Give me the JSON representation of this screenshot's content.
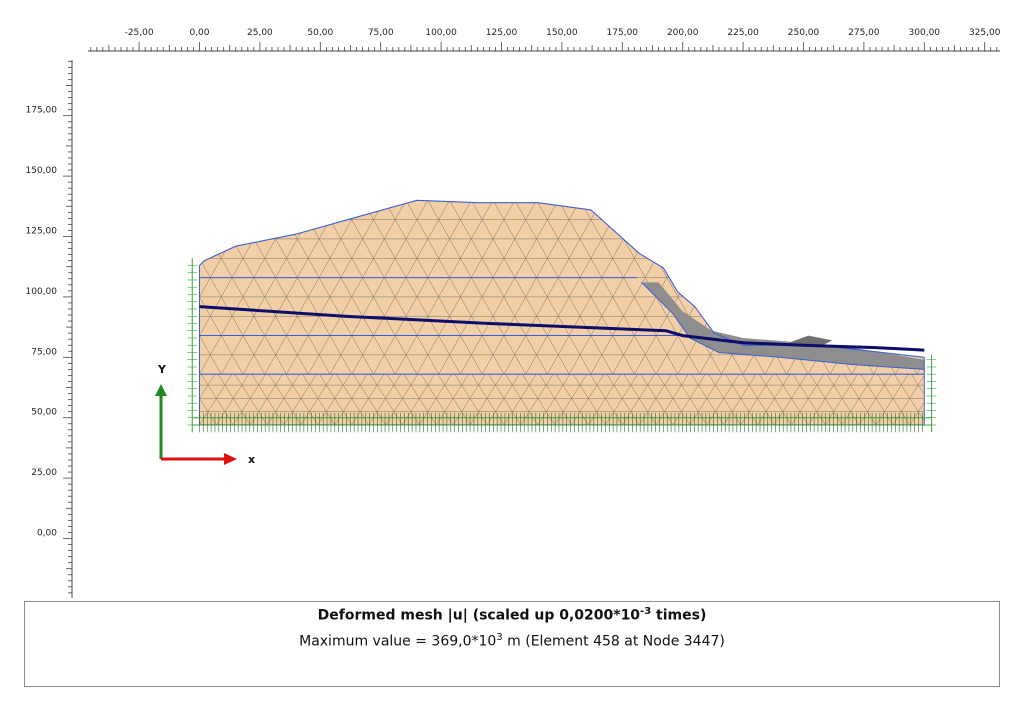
{
  "x_axis": {
    "tick_labels": [
      "-25,00",
      "0,00",
      "25,00",
      "50,00",
      "75,00",
      "100,00",
      "125,00",
      "150,00",
      "175,00",
      "200,00",
      "225,00",
      "250,00",
      "275,00",
      "300,00",
      "325,00"
    ],
    "tick_values": [
      -25,
      0,
      25,
      50,
      75,
      100,
      125,
      150,
      175,
      200,
      225,
      250,
      275,
      300,
      325
    ]
  },
  "y_axis": {
    "tick_labels": [
      "0,00",
      "25,00",
      "50,00",
      "75,00",
      "100,00",
      "125,00",
      "150,00",
      "175,00"
    ],
    "tick_values": [
      0,
      25,
      50,
      75,
      100,
      125,
      150,
      175
    ]
  },
  "axis_indicator": {
    "x_label": "x",
    "y_label": "Y"
  },
  "colors": {
    "upper_soil": "#f2cfa6",
    "lower_soil": "#efabb0",
    "structure": "#8e8e8e",
    "boundary_line": "#3b5fd6",
    "phreatic_line": "#0d0d6b",
    "mesh_line": "#7d7468",
    "fixity": "#39a33a"
  },
  "caption": {
    "title_main": "Deformed mesh |u| (scaled up 0,0200*10",
    "title_exp": "-3",
    "title_tail": " times)",
    "sub_main": "Maximum value = 369,0*10",
    "sub_exp": "3",
    "sub_tail": " m (Element 458 at Node 3447)"
  }
}
